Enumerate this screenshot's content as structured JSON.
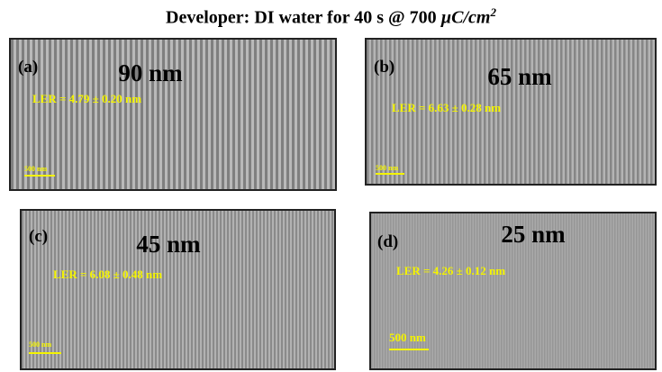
{
  "title": {
    "text": "Developer: DI water for 40 s @ 700 ",
    "unit": "µC/cm",
    "exponent": "2"
  },
  "panels": [
    {
      "label": "(a)",
      "feature": "90 nm",
      "ler": "LER = 4.79 ± 0.20 nm",
      "scale": "500 nm"
    },
    {
      "label": "(b)",
      "feature": "65 nm",
      "ler": "LER = 6.63 ± 0.28 nm",
      "scale": "500 nm"
    },
    {
      "label": "(c)",
      "feature": "45 nm",
      "ler": "LER = 6.08 ± 0.48 nm",
      "scale": "500 nm"
    },
    {
      "label": "(d)",
      "feature": "25 nm",
      "ler": "LER = 4.26 ± 0.12 nm",
      "scale": "500 nm"
    }
  ]
}
